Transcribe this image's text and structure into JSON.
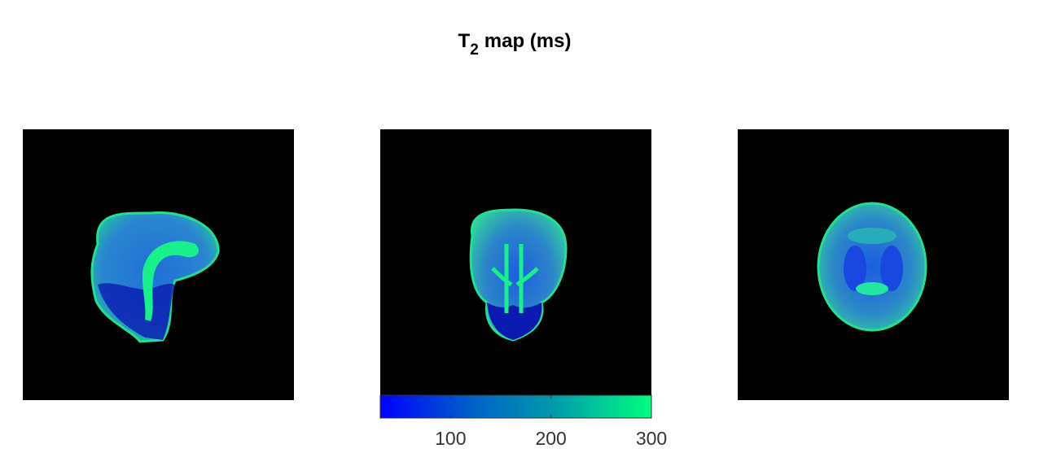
{
  "chart_data": {
    "type": "image",
    "title": {
      "base": "T",
      "subscript": "2",
      "rest": "map (ms)"
    },
    "colorbar": {
      "clim": [
        30,
        300
      ],
      "ticks": [
        100,
        200,
        300
      ],
      "colors": [
        "#0000ff",
        "#0060c8",
        "#00a0a8",
        "#00ff80"
      ]
    }
  }
}
